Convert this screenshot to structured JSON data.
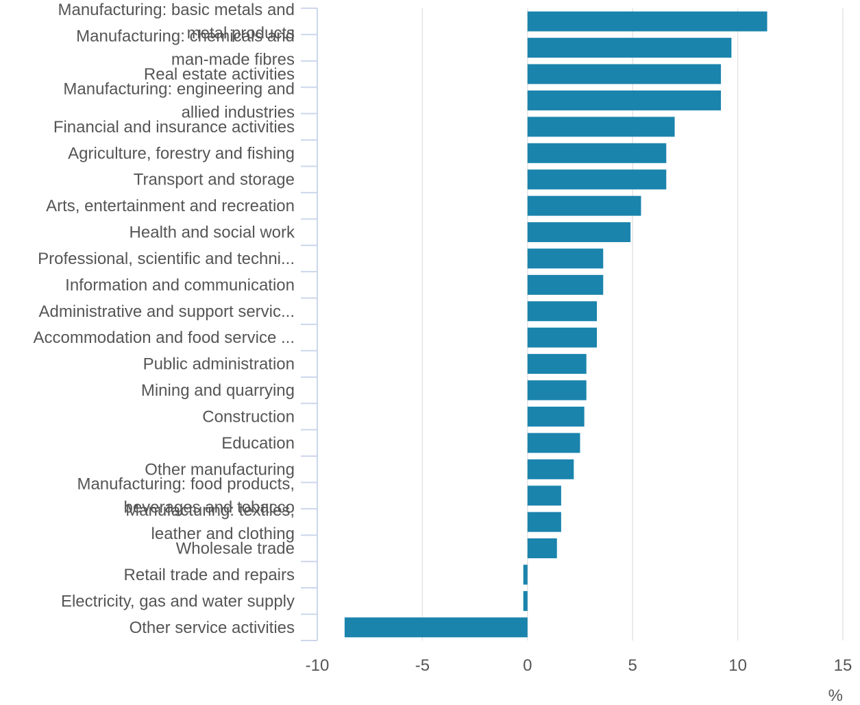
{
  "colors": {
    "bar": "#1a84ad",
    "grid": "#e4e4e4",
    "axis": "#ccd6eb",
    "text": "#555555"
  },
  "chart_data": {
    "type": "bar",
    "orientation": "horizontal",
    "title": "",
    "xlabel": "",
    "ylabel": "",
    "unit_label": "%",
    "xlim": [
      -10,
      15
    ],
    "xticks": [
      -10,
      -5,
      0,
      5,
      10,
      15
    ],
    "xtick_labels": [
      "-10",
      "-5",
      "0",
      "5",
      "10",
      "15"
    ],
    "grid": true,
    "legend": "none",
    "categories": [
      "Manufacturing: basic metals and metal products",
      "Manufacturing: chemicals and man-made fibres",
      "Real estate activities",
      "Manufacturing: engineering and allied industries",
      "Financial and insurance activities",
      "Agriculture, forestry and fishing",
      "Transport and storage",
      "Arts, entertainment and recreation",
      "Health and social work",
      "Professional, scientific and techni...",
      "Information and communication",
      "Administrative and support servic...",
      "Accommodation and food service ...",
      "Public administration",
      "Mining and quarrying",
      "Construction",
      "Education",
      "Other manufacturing",
      "Manufacturing: food products, beverages and tobacco",
      "Manufacturing: textiles, leather and clothing",
      "Wholesale trade",
      "Retail trade and repairs",
      "Electricity, gas and water supply",
      "Other service activities"
    ],
    "label_lines": [
      [
        "Manufacturing: basic metals and",
        "metal products"
      ],
      [
        "Manufacturing: chemicals and",
        "man-made fibres"
      ],
      [
        "Real estate activities"
      ],
      [
        "Manufacturing: engineering and",
        "allied industries"
      ],
      [
        "Financial and insurance activities"
      ],
      [
        "Agriculture, forestry and fishing"
      ],
      [
        "Transport and storage"
      ],
      [
        "Arts, entertainment and recreation"
      ],
      [
        "Health and social work"
      ],
      [
        "Professional, scientific and techni..."
      ],
      [
        "Information and communication"
      ],
      [
        "Administrative and support servic..."
      ],
      [
        "Accommodation and food service ..."
      ],
      [
        "Public administration"
      ],
      [
        "Mining and quarrying"
      ],
      [
        "Construction"
      ],
      [
        "Education"
      ],
      [
        "Other manufacturing"
      ],
      [
        "Manufacturing: food products,",
        "beverages and tobacco"
      ],
      [
        "Manufacturing: textiles,",
        "leather and clothing"
      ],
      [
        "Wholesale trade"
      ],
      [
        "Retail trade and repairs"
      ],
      [
        "Electricity, gas and water supply"
      ],
      [
        "Other service activities"
      ]
    ],
    "values": [
      11.4,
      9.7,
      9.2,
      9.2,
      7.0,
      6.6,
      6.6,
      5.4,
      4.9,
      3.6,
      3.6,
      3.3,
      3.3,
      2.8,
      2.8,
      2.7,
      2.5,
      2.2,
      1.6,
      1.6,
      1.4,
      -0.2,
      -0.2,
      -8.7
    ]
  }
}
